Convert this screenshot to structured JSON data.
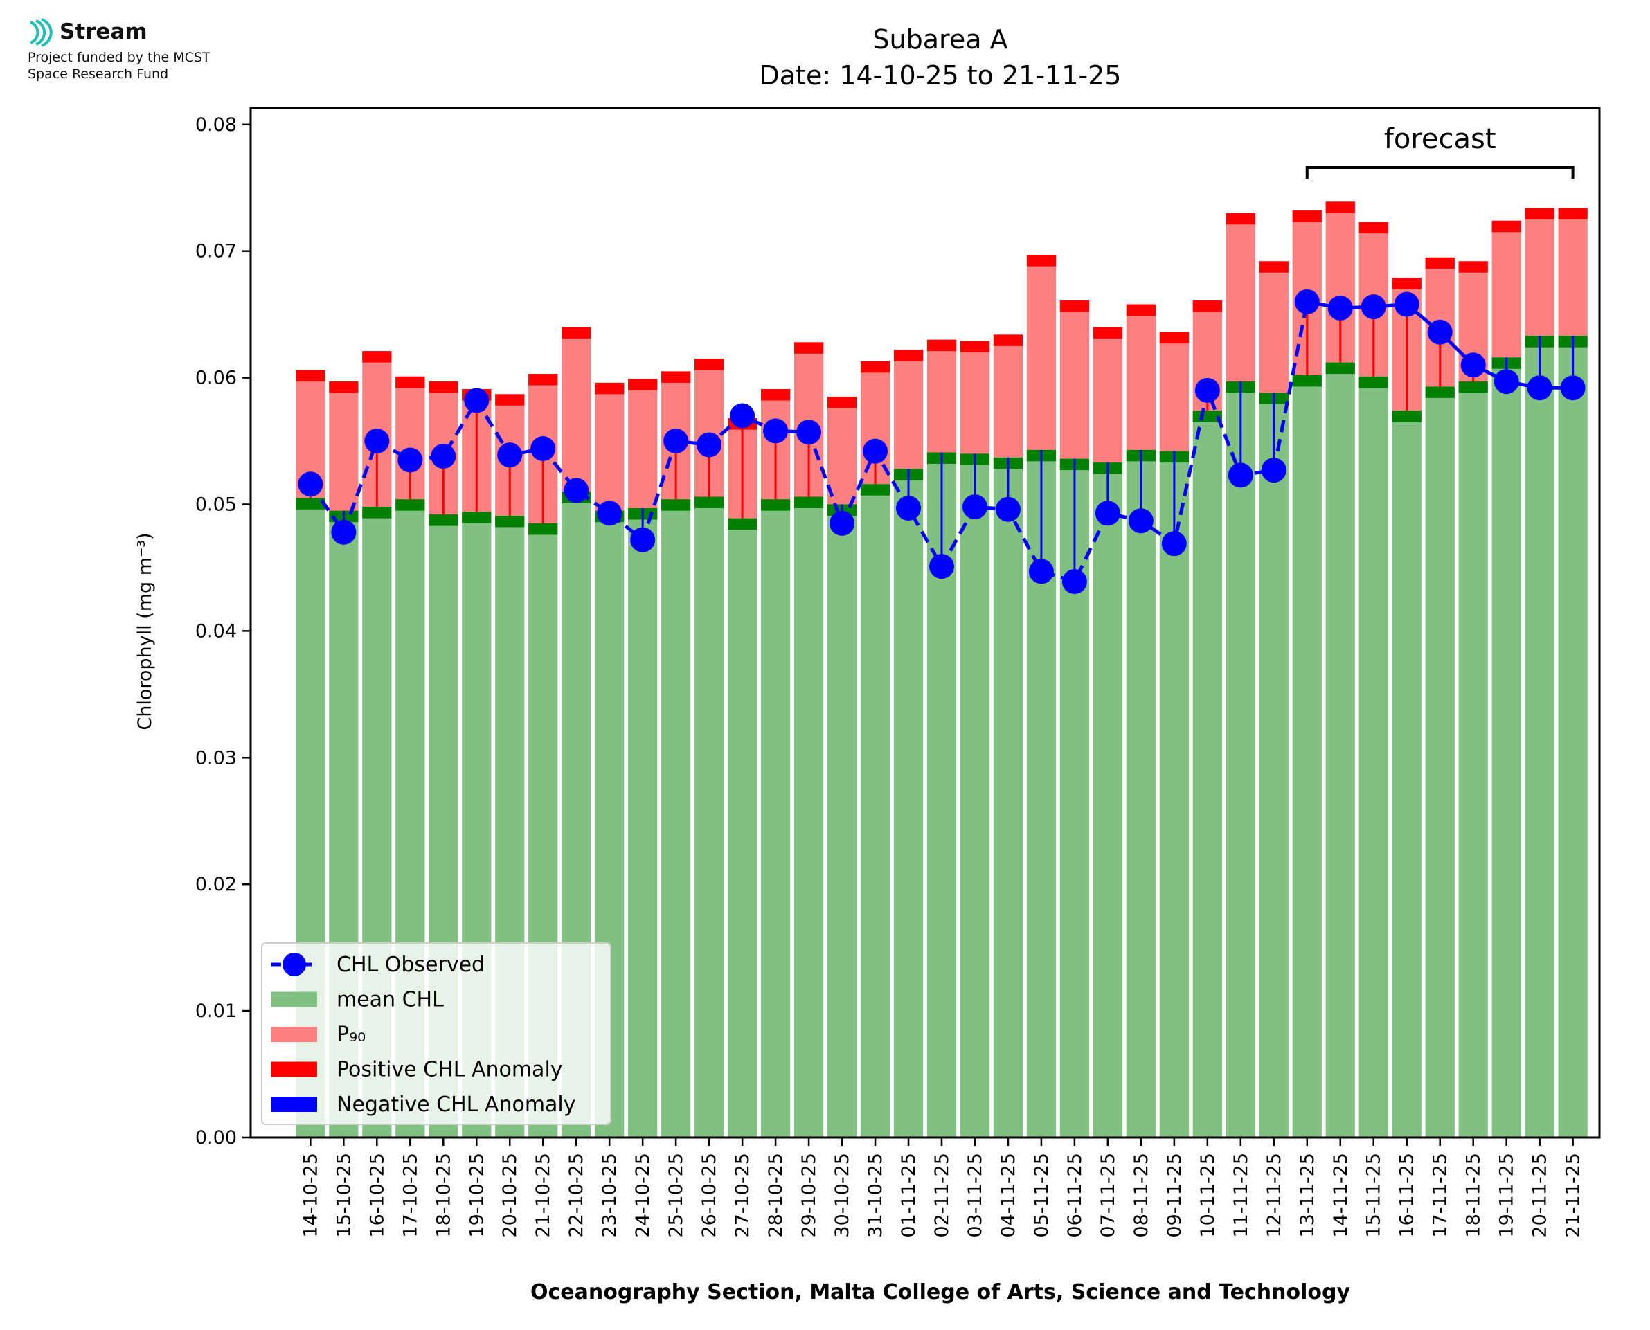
{
  "logo": {
    "name": "Stream",
    "line1": "Project funded by the MCST",
    "line2": "Space Research Fund",
    "color": "#1fbfb8"
  },
  "chart_data": {
    "type": "bar",
    "title": "Subarea A",
    "subtitle": "Date: 14-10-25 to 21-11-25",
    "xlabel": "Oceanography Section, Malta College of Arts, Science and Technology",
    "ylabel": "Chlorophyll (mg m⁻³)",
    "ylim": [
      0,
      0.0813
    ],
    "yticks": [
      0.0,
      0.01,
      0.02,
      0.03,
      0.04,
      0.05,
      0.06,
      0.07,
      0.08
    ],
    "ytick_labels": [
      "0.00",
      "0.01",
      "0.02",
      "0.03",
      "0.04",
      "0.05",
      "0.06",
      "0.07",
      "0.08"
    ],
    "categories": [
      "14-10-25",
      "15-10-25",
      "16-10-25",
      "17-10-25",
      "18-10-25",
      "19-10-25",
      "20-10-25",
      "21-10-25",
      "22-10-25",
      "23-10-25",
      "24-10-25",
      "25-10-25",
      "26-10-25",
      "27-10-25",
      "28-10-25",
      "29-10-25",
      "30-10-25",
      "31-10-25",
      "01-11-25",
      "02-11-25",
      "03-11-25",
      "04-11-25",
      "05-11-25",
      "06-11-25",
      "07-11-25",
      "08-11-25",
      "09-11-25",
      "10-11-25",
      "11-11-25",
      "12-11-25",
      "13-11-25",
      "14-11-25",
      "15-11-25",
      "16-11-25",
      "17-11-25",
      "18-11-25",
      "19-11-25",
      "20-11-25",
      "21-11-25"
    ],
    "series": [
      {
        "name": "mean CHL",
        "color": "#80c080",
        "values": [
          0.0505,
          0.0495,
          0.0498,
          0.0504,
          0.0492,
          0.0494,
          0.0491,
          0.0485,
          0.051,
          0.0495,
          0.0497,
          0.0504,
          0.0506,
          0.0489,
          0.0504,
          0.0506,
          0.05,
          0.0516,
          0.0528,
          0.0541,
          0.054,
          0.0537,
          0.0543,
          0.0536,
          0.0533,
          0.0543,
          0.0542,
          0.0574,
          0.0597,
          0.0588,
          0.0602,
          0.0612,
          0.0601,
          0.0574,
          0.0593,
          0.0597,
          0.0616,
          0.0633,
          0.0633
        ]
      },
      {
        "name": "P₉₀",
        "color": "#ff8080",
        "values": [
          0.0606,
          0.0597,
          0.0621,
          0.0601,
          0.0597,
          0.0591,
          0.0587,
          0.0603,
          0.064,
          0.0596,
          0.0599,
          0.0605,
          0.0615,
          0.0568,
          0.0591,
          0.0628,
          0.0585,
          0.0613,
          0.0622,
          0.063,
          0.0629,
          0.0634,
          0.0697,
          0.0661,
          0.064,
          0.0658,
          0.0636,
          0.0661,
          0.073,
          0.0692,
          0.0732,
          0.0739,
          0.0723,
          0.0679,
          0.0695,
          0.0692,
          0.0724,
          0.0734,
          0.0734
        ]
      },
      {
        "name": "CHL Observed",
        "color": "#0000ff",
        "values": [
          0.0516,
          0.0478,
          0.055,
          0.0535,
          0.0538,
          0.0582,
          0.0539,
          0.0544,
          0.0511,
          0.0493,
          0.0472,
          0.055,
          0.0547,
          0.057,
          0.0558,
          0.0557,
          0.0485,
          0.0542,
          0.0497,
          0.0451,
          0.0498,
          0.0496,
          0.0447,
          0.0439,
          0.0493,
          0.0487,
          0.0469,
          0.059,
          0.0523,
          0.0527,
          0.066,
          0.0655,
          0.0656,
          0.0658,
          0.0636,
          0.061,
          0.0597,
          0.0592,
          0.0592
        ]
      }
    ],
    "forecast_range": [
      "13-11-25",
      "21-11-25"
    ],
    "annotation": "forecast",
    "legend": {
      "placement": "lower-left",
      "entries": [
        "CHL Observed",
        "mean CHL",
        "P₉₀",
        "Positive CHL Anomaly",
        "Negative CHL Anomaly"
      ]
    },
    "colors": {
      "mean": "#80c080",
      "mean_cap": "#008000",
      "p90": "#ff8080",
      "p90_cap": "#ff0000",
      "positive": "#ff0000",
      "negative": "#0000ff",
      "observed": "#0000ff"
    }
  }
}
